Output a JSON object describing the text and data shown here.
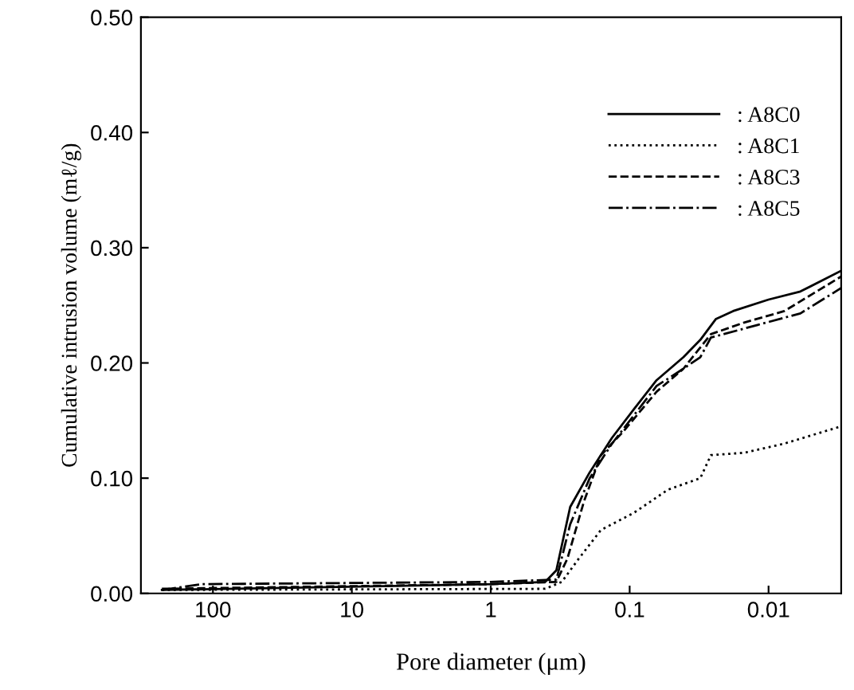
{
  "chart_data": {
    "type": "line",
    "xlabel": "Pore diameter (μm)",
    "ylabel": "Cumulative intrusion volume (mℓ/g)",
    "log": "x",
    "xlim": [
      330,
      0.003
    ],
    "ylim": [
      0,
      0.5
    ],
    "xticks": [
      100,
      10,
      1,
      0.1,
      0.01
    ],
    "yticks": [
      {
        "value": 0,
        "label": "0.00"
      },
      {
        "value": 0.1,
        "label": "0.10"
      },
      {
        "value": 0.2,
        "label": "0.20"
      },
      {
        "value": 0.3,
        "label": "0.30"
      },
      {
        "value": 0.4,
        "label": "0.40"
      },
      {
        "value": 0.5,
        "label": "0.50"
      }
    ],
    "grid": false,
    "legend": "top right",
    "marker": "none",
    "series": [
      {
        "name": ": A8C0",
        "color": "#000000",
        "line_style": "solid",
        "x": [
          233,
          1,
          0.405,
          0.337,
          0.268,
          0.194,
          0.134,
          0.093,
          0.064,
          0.041,
          0.031,
          0.024,
          0.018,
          0.01,
          0.0059,
          0.003
        ],
        "values": [
          0.003,
          0.008,
          0.01,
          0.02,
          0.075,
          0.105,
          0.135,
          0.16,
          0.185,
          0.205,
          0.22,
          0.238,
          0.245,
          0.255,
          0.262,
          0.28
        ]
      },
      {
        "name": ": A8C1",
        "color": "#000000",
        "line_style": "dotted",
        "x": [
          233,
          0.405,
          0.308,
          0.233,
          0.161,
          0.093,
          0.053,
          0.031,
          0.026,
          0.015,
          0.0077,
          0.003
        ],
        "values": [
          0.003,
          0.004,
          0.01,
          0.03,
          0.055,
          0.07,
          0.09,
          0.1,
          0.12,
          0.122,
          0.13,
          0.145
        ]
      },
      {
        "name": ": A8C3",
        "color": "#000000",
        "line_style": "dashed",
        "x": [
          233,
          1,
          0.337,
          0.281,
          0.213,
          0.161,
          0.112,
          0.064,
          0.041,
          0.026,
          0.015,
          0.0077,
          0.003
        ],
        "values": [
          0.004,
          0.008,
          0.01,
          0.03,
          0.08,
          0.12,
          0.14,
          0.175,
          0.195,
          0.225,
          0.235,
          0.245,
          0.275
        ]
      },
      {
        "name": ": A8C5",
        "color": "#000000",
        "line_style": "dashdot",
        "x": [
          233,
          122,
          1,
          0.337,
          0.268,
          0.194,
          0.134,
          0.064,
          0.041,
          0.031,
          0.026,
          0.012,
          0.0059,
          0.003
        ],
        "values": [
          0.003,
          0.008,
          0.01,
          0.012,
          0.06,
          0.1,
          0.13,
          0.18,
          0.195,
          0.205,
          0.222,
          0.233,
          0.243,
          0.265
        ]
      }
    ]
  }
}
